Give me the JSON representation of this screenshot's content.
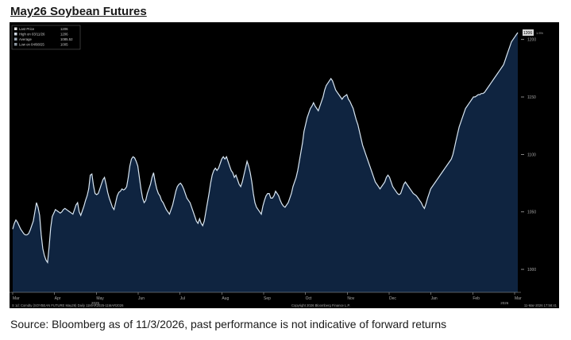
{
  "title": "May26 Soybean Futures",
  "source_note": "Source: Bloomberg as of 11/3/2026, past performance is not indicative of forward returns",
  "chart_data": {
    "type": "area",
    "title": "May26 Soybean Futures",
    "xlabel": "",
    "ylabel": "",
    "ylim": [
      980,
      1215
    ],
    "grid": false,
    "legend_position": "top-left",
    "legend": [
      {
        "label": "Last Price",
        "value": "1206"
      },
      {
        "label": "High on 03/11/26",
        "value": "1206"
      },
      {
        "label": "Average",
        "value": "1085.52"
      },
      {
        "label": "Low on 04/08/25",
        "value": "1005"
      }
    ],
    "last_value_label": "1206",
    "y_ticks": [
      1000,
      1050,
      1100,
      1150,
      1200
    ],
    "x_ticks": [
      "Mar",
      "Apr",
      "May",
      "Jun",
      "Jul",
      "Aug",
      "Sep",
      "Oct",
      "Nov",
      "Dec",
      "Jan",
      "Feb",
      "Mar"
    ],
    "x_year_labels": [
      {
        "label": "2025",
        "at": 16
      },
      {
        "label": "2026",
        "at": 96
      }
    ],
    "footer_left": "S 1d: Comdty (SOYBEAN FUTURE    May26) Daily 11MAR2025-11MAR2026",
    "footer_center": "Copyright 2026 Bloomberg Finance L.P.",
    "footer_right": "11-Mar-2026 17:58:41",
    "colors": {
      "background": "#000000",
      "fill": "#0f2440",
      "line": "#d8e6f2",
      "axis_text": "#a9a9a9"
    },
    "series": [
      {
        "values": [
          1035,
          1040,
          1043,
          1041,
          1038,
          1035,
          1033,
          1031,
          1030,
          1030,
          1031,
          1034,
          1038,
          1042,
          1050,
          1058,
          1054,
          1047,
          1030,
          1018,
          1012,
          1008,
          1006,
          1020,
          1036,
          1046,
          1049,
          1052,
          1051,
          1050,
          1049,
          1050,
          1052,
          1053,
          1052,
          1051,
          1050,
          1049,
          1048,
          1052,
          1056,
          1058,
          1050,
          1047,
          1051,
          1055,
          1060,
          1064,
          1070,
          1082,
          1083,
          1073,
          1066,
          1065,
          1066,
          1070,
          1074,
          1078,
          1080,
          1074,
          1067,
          1062,
          1058,
          1054,
          1052,
          1058,
          1064,
          1067,
          1068,
          1070,
          1069,
          1070,
          1072,
          1080,
          1090,
          1096,
          1098,
          1097,
          1094,
          1090,
          1080,
          1070,
          1062,
          1058,
          1060,
          1066,
          1070,
          1074,
          1080,
          1084,
          1076,
          1070,
          1066,
          1064,
          1060,
          1058,
          1055,
          1052,
          1050,
          1048,
          1052,
          1056,
          1062,
          1068,
          1072,
          1074,
          1075,
          1073,
          1070,
          1066,
          1062,
          1060,
          1058,
          1054,
          1050,
          1046,
          1042,
          1040,
          1044,
          1040,
          1038,
          1042,
          1050,
          1058,
          1066,
          1075,
          1082,
          1086,
          1088,
          1086,
          1088,
          1092,
          1096,
          1098,
          1096,
          1098,
          1094,
          1090,
          1086,
          1084,
          1080,
          1082,
          1078,
          1074,
          1072,
          1076,
          1082,
          1088,
          1094,
          1090,
          1084,
          1076,
          1066,
          1058,
          1054,
          1052,
          1050,
          1048,
          1055,
          1060,
          1064,
          1066,
          1066,
          1062,
          1062,
          1064,
          1068,
          1066,
          1064,
          1060,
          1057,
          1055,
          1054,
          1056,
          1058,
          1062,
          1066,
          1072,
          1076,
          1080,
          1086,
          1094,
          1102,
          1110,
          1120,
          1126,
          1132,
          1136,
          1140,
          1142,
          1145,
          1142,
          1140,
          1138,
          1142,
          1146,
          1150,
          1156,
          1160,
          1162,
          1164,
          1166,
          1164,
          1160,
          1156,
          1154,
          1152,
          1150,
          1148,
          1150,
          1151,
          1152,
          1148,
          1146,
          1143,
          1140,
          1135,
          1130,
          1126,
          1120,
          1114,
          1108,
          1104,
          1100,
          1096,
          1092,
          1088,
          1084,
          1080,
          1076,
          1074,
          1072,
          1070,
          1072,
          1074,
          1076,
          1080,
          1082,
          1080,
          1076,
          1072,
          1070,
          1068,
          1066,
          1065,
          1066,
          1070,
          1074,
          1076,
          1074,
          1072,
          1070,
          1068,
          1066,
          1065,
          1064,
          1062,
          1060,
          1058,
          1055,
          1053,
          1057,
          1062,
          1066,
          1070,
          1072,
          1074,
          1076,
          1078,
          1080,
          1082,
          1084,
          1086,
          1088,
          1090,
          1092,
          1094,
          1096,
          1100,
          1106,
          1112,
          1118,
          1124,
          1128,
          1132,
          1136,
          1140,
          1142,
          1144,
          1146,
          1148,
          1150,
          1150,
          1151,
          1152,
          1152,
          1153,
          1153,
          1154,
          1156,
          1158,
          1160,
          1162,
          1164,
          1166,
          1168,
          1170,
          1172,
          1174,
          1176,
          1178,
          1182,
          1186,
          1190,
          1194,
          1198,
          1200,
          1202,
          1204,
          1206
        ]
      }
    ]
  }
}
